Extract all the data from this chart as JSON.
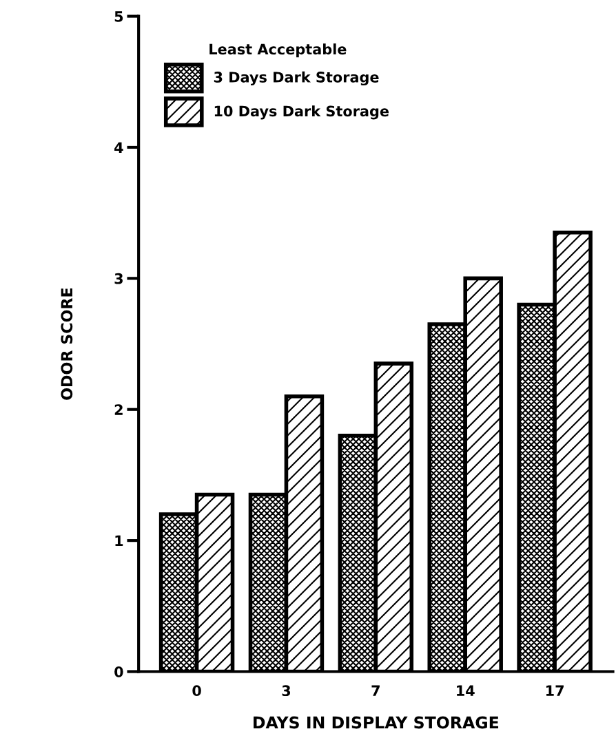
{
  "chart_data": {
    "type": "bar",
    "xlabel": "DAYS IN DISPLAY STORAGE",
    "ylabel": "ODOR SCORE",
    "legend_title": "Least Acceptable",
    "categories": [
      "0",
      "3",
      "7",
      "14",
      "17"
    ],
    "series": [
      {
        "name": "3 Days Dark Storage",
        "color": "#000000",
        "values": [
          1.2,
          1.35,
          1.8,
          2.65,
          2.8
        ]
      },
      {
        "name": "10 Days Dark Storage",
        "color": "#000000",
        "values": [
          1.35,
          2.1,
          2.35,
          3.0,
          3.35
        ]
      }
    ],
    "ylim": [
      0,
      5
    ],
    "yticks": [
      0,
      1,
      2,
      3,
      4,
      5
    ],
    "grid": false,
    "legend": "top left"
  }
}
